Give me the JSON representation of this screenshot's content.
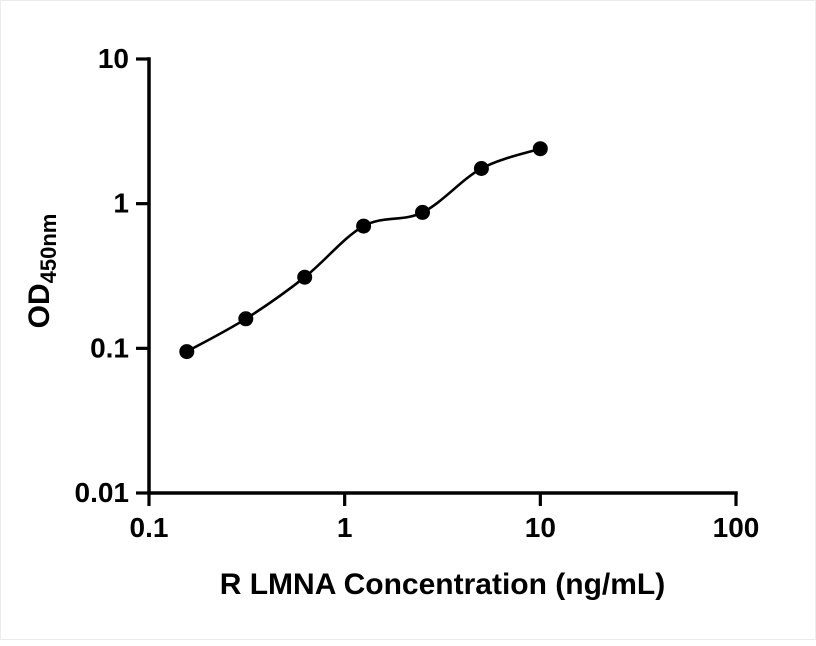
{
  "chart_data": {
    "type": "scatter",
    "title": "",
    "xlabel": "R LMNA Concentration (ng/mL)",
    "ylabel_main": "OD",
    "ylabel_sub": "450nm",
    "x_scale": "log10",
    "y_scale": "log10",
    "xlim": [
      0.1,
      100
    ],
    "ylim": [
      0.01,
      10
    ],
    "grid": "off",
    "legend": "none",
    "x_ticks": [
      {
        "value": 0.1,
        "label": "0.1"
      },
      {
        "value": 1,
        "label": "1"
      },
      {
        "value": 10,
        "label": "10"
      },
      {
        "value": 100,
        "label": "100"
      }
    ],
    "y_ticks": [
      {
        "value": 0.01,
        "label": "0.01"
      },
      {
        "value": 0.1,
        "label": "0.1"
      },
      {
        "value": 1,
        "label": "1"
      },
      {
        "value": 10,
        "label": "10"
      }
    ],
    "points": [
      {
        "x": 0.156,
        "y": 0.095
      },
      {
        "x": 0.3125,
        "y": 0.16
      },
      {
        "x": 0.625,
        "y": 0.31
      },
      {
        "x": 1.25,
        "y": 0.7
      },
      {
        "x": 2.5,
        "y": 0.87
      },
      {
        "x": 5,
        "y": 1.75
      },
      {
        "x": 10,
        "y": 2.4
      }
    ],
    "marker_color": "#000000",
    "line_color": "#000000",
    "background_color": "#ffffff",
    "curve_style": "smooth-fit-through-points"
  }
}
